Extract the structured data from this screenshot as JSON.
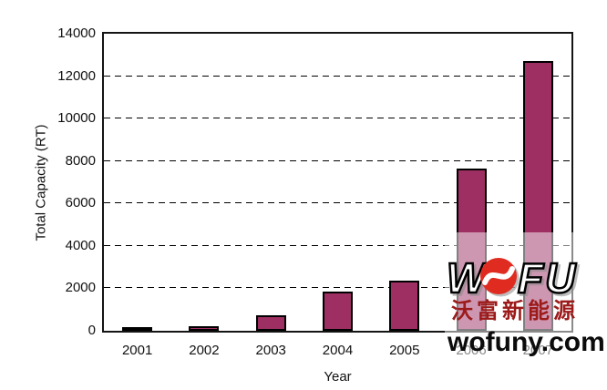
{
  "chart_data": {
    "type": "bar",
    "title": "",
    "xlabel": "Year",
    "ylabel": "Total Capacity (RT)",
    "categories": [
      "2001",
      "2002",
      "2003",
      "2004",
      "2005",
      "2006",
      "2007"
    ],
    "values": [
      100,
      200,
      750,
      1850,
      2350,
      7650,
      12700
    ],
    "ylim": [
      0,
      14000
    ],
    "y_ticks": [
      0,
      2000,
      4000,
      6000,
      8000,
      10000,
      12000,
      14000
    ],
    "grid": "horizontal dashed black lines at every 2000, inside solid black frame",
    "legend": "none",
    "bar_color": "#9d2f62",
    "bar_outline": "#000000"
  },
  "watermark": {
    "logo_letter_w": "W",
    "logo_letters_fu": "FU",
    "chinese": "沃富新能源",
    "url": "wofuny.com",
    "logo_red": "#df2b20",
    "text_red": "#9c1a1a",
    "overlay": "semi-transparent white box over lower-right of chart"
  }
}
